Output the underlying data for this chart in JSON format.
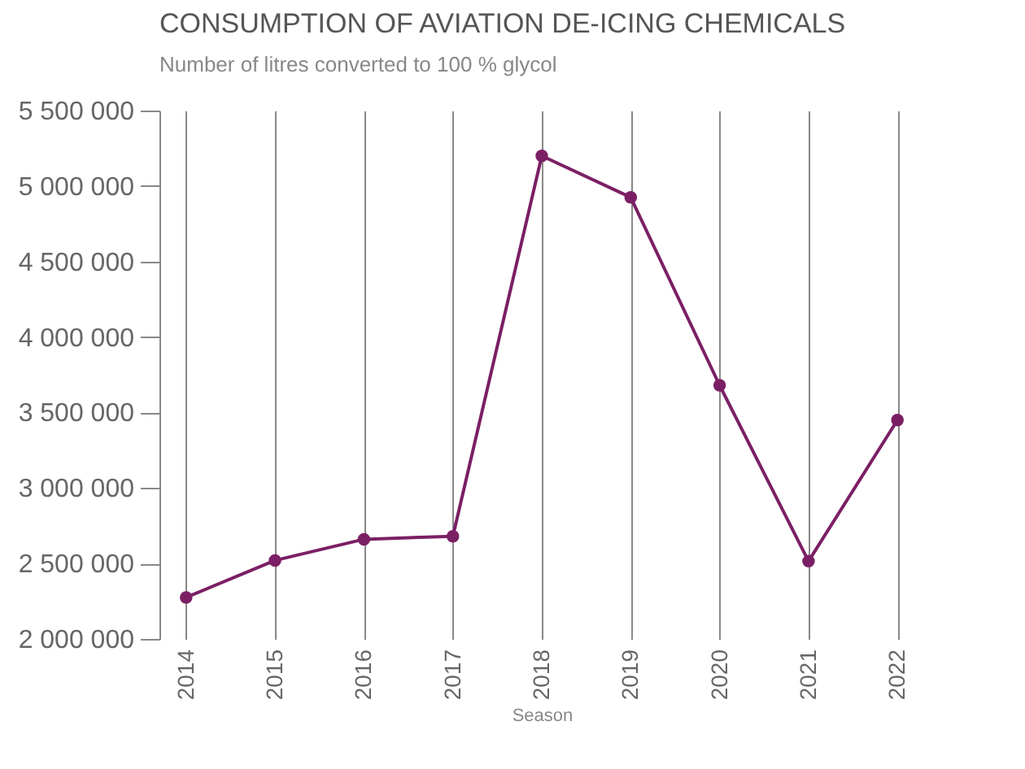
{
  "chart_data": {
    "type": "line",
    "title": "CONSUMPTION OF AVIATION DE-ICING CHEMICALS",
    "subtitle": "Number of litres converted to 100 % glycol",
    "xlabel": "Season",
    "categories": [
      "2014",
      "2015",
      "2016",
      "2017",
      "2018",
      "2019",
      "2020",
      "2021",
      "2022"
    ],
    "series": [
      {
        "color": "#7b1f65",
        "values": [
          2275000,
          2520000,
          2660000,
          2680000,
          5200000,
          4925000,
          3680000,
          2515000,
          3450000
        ]
      }
    ],
    "ylim": [
      2000000,
      5500000
    ],
    "yticks": [
      {
        "value": 2000000,
        "label": "2 000 000"
      },
      {
        "value": 2500000,
        "label": "2 500 000"
      },
      {
        "value": 3000000,
        "label": "3 000 000"
      },
      {
        "value": 3500000,
        "label": "3 500 000"
      },
      {
        "value": 4000000,
        "label": "4 000 000"
      },
      {
        "value": 4500000,
        "label": "4 500 000"
      },
      {
        "value": 5000000,
        "label": "5 000 000"
      },
      {
        "value": 5500000,
        "label": "5 500 000"
      }
    ],
    "grid": "x",
    "marker": "circle",
    "line_style": "solid"
  }
}
